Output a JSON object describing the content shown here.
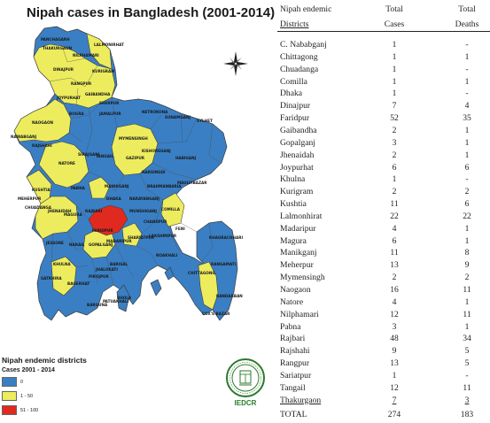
{
  "map": {
    "title": "Nipah cases in Bangladesh (2001-2014)",
    "legend_title": "Nipah endemic districts",
    "legend_subtitle": "Cases 2001 - 2014",
    "legend_items": [
      {
        "label": "0",
        "color": "#3a7fc4"
      },
      {
        "label": "1 - 50",
        "color": "#ecec5e"
      },
      {
        "label": "51 - 100",
        "color": "#e02a20"
      }
    ],
    "logo_text": "IEDCR",
    "district_labels": [
      "PANCHAGARH",
      "THAKURGAON",
      "NILPHAMARI",
      "DINAJPUR",
      "RANGPUR",
      "LALMONIRHAT",
      "KURIGRAM",
      "GAIBANDHA",
      "JOYPURHAT",
      "NAOGAON",
      "BOGRA",
      "NAWABGANJ",
      "RAJSHAHI",
      "NATORE",
      "SIRAJGANJ",
      "SHERPUR",
      "JAMALPUR",
      "MYMENSINGH",
      "NETROKONA",
      "SUNAMGANJ",
      "SYLHET",
      "KISHOREGANJ",
      "HABIGANJ",
      "MAULVIBAZAR",
      "TANGAIL",
      "GAZIPUR",
      "NARSINGDI",
      "BRAHMANBARIA",
      "PABNA",
      "KUSHTIA",
      "MEHERPUR",
      "CHUADANGA",
      "JHENAIDAH",
      "MAGURA",
      "RAJBARI",
      "MANIKGANJ",
      "DHAKA",
      "NARAYANGANJ",
      "FARIDPUR",
      "MUNSHIGANJ",
      "COMILLA",
      "CHANDPUR",
      "SHARIATPUR",
      "MADARIPUR",
      "GOPALGANJ",
      "NARAIL",
      "JESSORE",
      "KHULNA",
      "SATKHIRA",
      "BAGERHAT",
      "PIROJPUR",
      "BARISAL",
      "JHALOKATI",
      "LAKSHMIPUR",
      "NOAKHALI",
      "FENI",
      "KHAGRACHHARI",
      "RANGAMATI",
      "CHITTAGONG",
      "BANDARBAN",
      "COX'S BAZAR",
      "BHOLA",
      "PATUAKHALI",
      "BARGUNA"
    ]
  },
  "table": {
    "headers": {
      "district_line1": "Nipah endemic",
      "district_line2": "Districts",
      "cases_line1": "Total",
      "cases_line2": "Cases",
      "deaths_line1": "Total",
      "deaths_line2": "Deaths"
    },
    "rows": [
      {
        "district": "C. Nababganj",
        "cases": "1",
        "deaths": "-"
      },
      {
        "district": "Chittagong",
        "cases": "1",
        "deaths": "1"
      },
      {
        "district": "Chuadanga",
        "cases": "1",
        "deaths": "-"
      },
      {
        "district": "Comilla",
        "cases": "1",
        "deaths": "1"
      },
      {
        "district": "Dhaka",
        "cases": "1",
        "deaths": "-"
      },
      {
        "district": "Dinajpur",
        "cases": "7",
        "deaths": "4"
      },
      {
        "district": "Faridpur",
        "cases": "52",
        "deaths": "35"
      },
      {
        "district": "Gaibandha",
        "cases": "2",
        "deaths": "1"
      },
      {
        "district": "Gopalganj",
        "cases": "3",
        "deaths": "1"
      },
      {
        "district": "Jhenaidah",
        "cases": "2",
        "deaths": "1"
      },
      {
        "district": "Joypurhat",
        "cases": "6",
        "deaths": "6"
      },
      {
        "district": "Khulna",
        "cases": "1",
        "deaths": "-"
      },
      {
        "district": "Kurigram",
        "cases": "2",
        "deaths": "2"
      },
      {
        "district": "Kushtia",
        "cases": "11",
        "deaths": "6"
      },
      {
        "district": "Lalmonhirat",
        "cases": "22",
        "deaths": "22"
      },
      {
        "district": "Madaripur",
        "cases": "4",
        "deaths": "1"
      },
      {
        "district": "Magura",
        "cases": "6",
        "deaths": "1"
      },
      {
        "district": "Manikganj",
        "cases": "11",
        "deaths": "8"
      },
      {
        "district": "Meherpur",
        "cases": "13",
        "deaths": "9"
      },
      {
        "district": "Mymensingh",
        "cases": "2",
        "deaths": "2"
      },
      {
        "district": "Naogaon",
        "cases": "16",
        "deaths": "11"
      },
      {
        "district": "Natore",
        "cases": "4",
        "deaths": "1"
      },
      {
        "district": "Nilphamari",
        "cases": "12",
        "deaths": "11"
      },
      {
        "district": "Pabna",
        "cases": "3",
        "deaths": "1"
      },
      {
        "district": "Rajbari",
        "cases": "48",
        "deaths": "34"
      },
      {
        "district": "Rajshahi",
        "cases": "9",
        "deaths": "5"
      },
      {
        "district": "Rangpur",
        "cases": "13",
        "deaths": "5"
      },
      {
        "district": "Sariatpur",
        "cases": "1",
        "deaths": "-"
      },
      {
        "district": "Tangail",
        "cases": "12",
        "deaths": "11"
      },
      {
        "district": "Thakurgaon",
        "cases": "7",
        "deaths": "3"
      }
    ],
    "total": {
      "label": "TOTAL",
      "cases": "274",
      "deaths": "183"
    }
  },
  "colors": {
    "blue": "#3a7fc4",
    "yellow": "#ecec5e",
    "red": "#e02a20",
    "border": "#3c3c3c"
  }
}
